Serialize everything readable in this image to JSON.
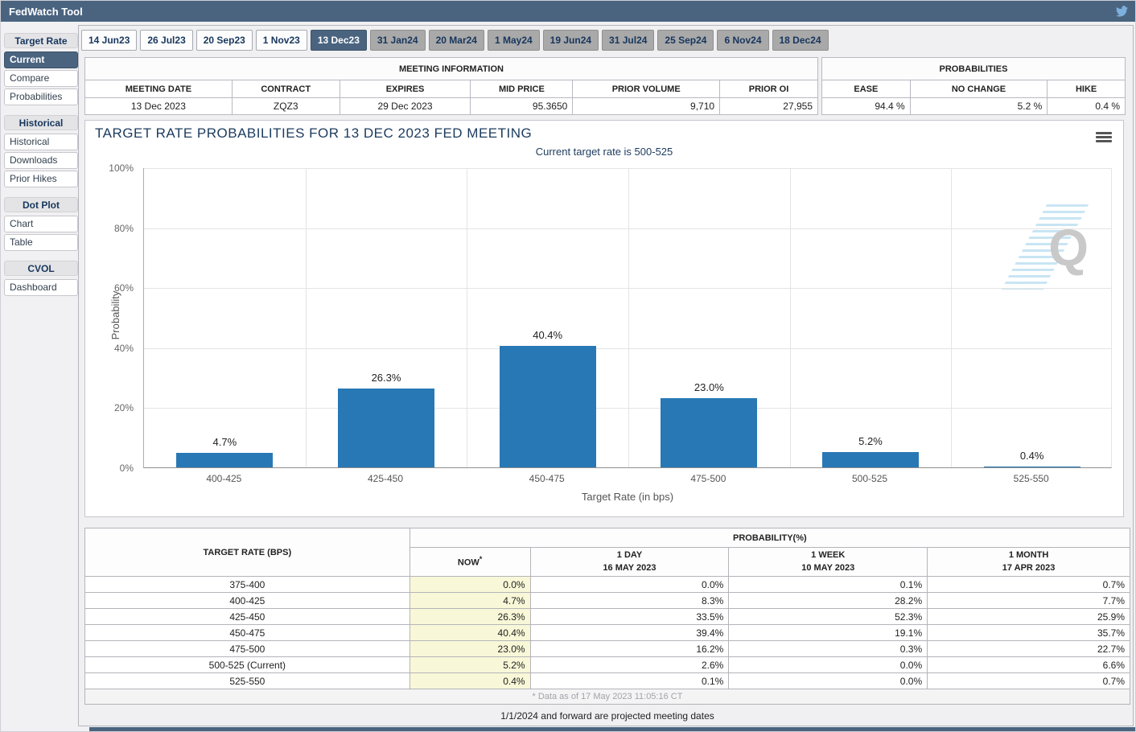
{
  "header": {
    "title": "FedWatch Tool"
  },
  "icons": {
    "twitter": "twitter-bird-icon",
    "chart_menu": "hamburger-menu-icon",
    "watermark": "quikstrike-q-watermark"
  },
  "colors": {
    "accent_slate": "#4a6480",
    "bar_blue": "#2878b5",
    "now_column_bg": "#f8f8d8",
    "future_tab_gray": "#a9a9a9",
    "twitter_blue": "#7db0dc"
  },
  "sidebar": {
    "sections": [
      {
        "header": "Target Rate",
        "items": [
          {
            "label": "Current",
            "selected": true
          },
          {
            "label": "Compare",
            "selected": false
          },
          {
            "label": "Probabilities",
            "selected": false
          }
        ]
      },
      {
        "header": "Historical",
        "items": [
          {
            "label": "Historical",
            "selected": false
          },
          {
            "label": "Downloads",
            "selected": false
          },
          {
            "label": "Prior Hikes",
            "selected": false
          }
        ]
      },
      {
        "header": "Dot Plot",
        "items": [
          {
            "label": "Chart",
            "selected": false
          },
          {
            "label": "Table",
            "selected": false
          }
        ]
      },
      {
        "header": "CVOL",
        "items": [
          {
            "label": "Dashboard",
            "selected": false
          }
        ]
      }
    ]
  },
  "tabs": {
    "selected": "13 Dec23",
    "items": [
      {
        "label": "14 Jun23",
        "state": "past"
      },
      {
        "label": "26 Jul23",
        "state": "past"
      },
      {
        "label": "20 Sep23",
        "state": "past"
      },
      {
        "label": "1 Nov23",
        "state": "past"
      },
      {
        "label": "13 Dec23",
        "state": "selected"
      },
      {
        "label": "31 Jan24",
        "state": "future"
      },
      {
        "label": "20 Mar24",
        "state": "future"
      },
      {
        "label": "1 May24",
        "state": "future"
      },
      {
        "label": "19 Jun24",
        "state": "future"
      },
      {
        "label": "31 Jul24",
        "state": "future"
      },
      {
        "label": "25 Sep24",
        "state": "future"
      },
      {
        "label": "6 Nov24",
        "state": "future"
      },
      {
        "label": "18 Dec24",
        "state": "future"
      }
    ]
  },
  "meeting_info": {
    "caption": "MEETING INFORMATION",
    "columns": [
      "MEETING DATE",
      "CONTRACT",
      "EXPIRES",
      "MID PRICE",
      "PRIOR VOLUME",
      "PRIOR OI"
    ],
    "values": [
      "13 Dec 2023",
      "ZQZ3",
      "29 Dec 2023",
      "95.3650",
      "9,710",
      "27,955"
    ]
  },
  "probabilities_summary": {
    "caption": "PROBABILITIES",
    "columns": [
      "EASE",
      "NO CHANGE",
      "HIKE"
    ],
    "values": [
      "94.4 %",
      "5.2 %",
      "0.4 %"
    ]
  },
  "chart_data": {
    "type": "bar",
    "title": "TARGET RATE PROBABILITIES FOR 13 DEC 2023 FED MEETING",
    "subtitle": "Current target rate is 500-525",
    "categories": [
      "400-425",
      "425-450",
      "450-475",
      "475-500",
      "500-525",
      "525-550"
    ],
    "values": [
      4.7,
      26.3,
      40.4,
      23.0,
      5.2,
      0.4
    ],
    "value_labels": [
      "4.7%",
      "26.3%",
      "40.4%",
      "23.0%",
      "5.2%",
      "0.4%"
    ],
    "xlabel": "Target Rate (in bps)",
    "ylabel": "Probability",
    "ylim": [
      0,
      100
    ],
    "yticks": [
      0,
      20,
      40,
      60,
      80,
      100
    ],
    "ytick_labels": [
      "0%",
      "20%",
      "40%",
      "60%",
      "80%",
      "100%"
    ],
    "grid": true,
    "legend": "none",
    "bar_color": "#2878b5"
  },
  "prob_table": {
    "header_left": "TARGET RATE (BPS)",
    "header_right": "PROBABILITY(%)",
    "columns": [
      {
        "label": "NOW",
        "sup": "*",
        "date": ""
      },
      {
        "label": "1 DAY",
        "date": "16 MAY 2023"
      },
      {
        "label": "1 WEEK",
        "date": "10 MAY 2023"
      },
      {
        "label": "1 MONTH",
        "date": "17 APR 2023"
      }
    ],
    "rows": [
      {
        "label": "375-400",
        "now": "0.0%",
        "day": "0.0%",
        "week": "0.1%",
        "month": "0.7%"
      },
      {
        "label": "400-425",
        "now": "4.7%",
        "day": "8.3%",
        "week": "28.2%",
        "month": "7.7%"
      },
      {
        "label": "425-450",
        "now": "26.3%",
        "day": "33.5%",
        "week": "52.3%",
        "month": "25.9%"
      },
      {
        "label": "450-475",
        "now": "40.4%",
        "day": "39.4%",
        "week": "19.1%",
        "month": "35.7%"
      },
      {
        "label": "475-500",
        "now": "23.0%",
        "day": "16.2%",
        "week": "0.3%",
        "month": "22.7%"
      },
      {
        "label": "500-525 (Current)",
        "now": "5.2%",
        "day": "2.6%",
        "week": "0.0%",
        "month": "6.6%"
      },
      {
        "label": "525-550",
        "now": "0.4%",
        "day": "0.1%",
        "week": "0.0%",
        "month": "0.7%"
      }
    ],
    "footnote": "* Data as of 17 May 2023 11:05:16 CT"
  },
  "notes": {
    "projected": "1/1/2024 and forward are projected meeting dates"
  }
}
